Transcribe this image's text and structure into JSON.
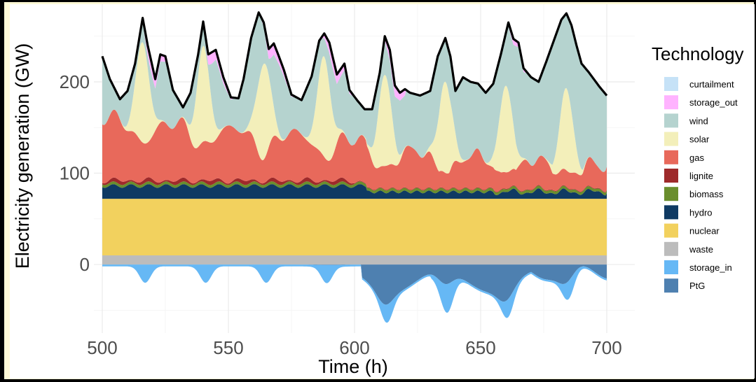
{
  "chart_data": {
    "type": "area",
    "xlabel": "Time (h)",
    "ylabel": "Electricity generation (GW)",
    "xlim": [
      500,
      700
    ],
    "ylim": [
      -75,
      285
    ],
    "xticks": [
      500,
      550,
      600,
      650,
      700
    ],
    "yticks": [
      0,
      100,
      200
    ],
    "grid": true,
    "legend_placement": "right",
    "legend_title": "Technology",
    "day_peaks": [
      516,
      540,
      564,
      588,
      612,
      636,
      660,
      684
    ],
    "layers": [
      {
        "name": "curtailment",
        "color": "#c6e2f7",
        "value_gw": 0
      },
      {
        "name": "storage_out",
        "color": "#ffb3ff",
        "value_gw": "5-15 at daily peaks, hours 500-620, 740-745"
      },
      {
        "name": "wind",
        "color": "#b5d3cf",
        "value_gw": "50-130"
      },
      {
        "name": "solar",
        "color": "#f3efba",
        "value_gw": "0-110, daily peak near 14:00"
      },
      {
        "name": "gas",
        "color": "#e8695b",
        "value_gw": "70 (hour 500) to 25 (hour 700)"
      },
      {
        "name": "lignite",
        "color": "#9e2a2b",
        "value_gw": "2-5, hours 500-600"
      },
      {
        "name": "biomass",
        "color": "#6a8e2d",
        "value_gw": 3
      },
      {
        "name": "hydro",
        "color": "#0f3a63",
        "value_gw": "7-17"
      },
      {
        "name": "nuclear",
        "color": "#f2d15e",
        "value_gw": 62
      },
      {
        "name": "waste",
        "color": "#bcbcbc",
        "value_gw": 10
      },
      {
        "name": "storage_in",
        "color": "#66b8f5",
        "value_gw": "-5 to -25, negative"
      },
      {
        "name": "PtG",
        "color": "#4e80b0",
        "value_gw": "0 to -45, negative, hours 605-700"
      }
    ],
    "total_line_color": "#000000",
    "total_generation_gw": {
      "x": [
        500,
        503,
        507,
        510,
        513,
        516,
        518,
        521,
        523,
        525,
        528,
        532,
        535,
        538,
        540,
        542,
        545,
        548,
        551,
        554,
        556,
        559,
        562,
        564,
        566,
        568,
        570,
        572,
        575,
        579,
        583,
        586,
        588,
        590,
        593,
        596,
        598,
        601,
        604,
        607,
        610,
        612,
        614,
        616,
        618,
        620,
        622,
        626,
        630,
        633,
        636,
        638,
        640,
        643,
        646,
        649,
        652,
        655,
        658,
        661,
        663,
        665,
        667,
        670,
        673,
        676,
        679,
        682,
        684,
        686,
        688,
        690,
        693,
        697,
        700
      ],
      "y": [
        228,
        203,
        181,
        190,
        220,
        270,
        240,
        203,
        230,
        228,
        191,
        172,
        188,
        230,
        266,
        230,
        235,
        205,
        183,
        182,
        203,
        248,
        276,
        265,
        236,
        242,
        228,
        213,
        186,
        180,
        206,
        245,
        253,
        243,
        208,
        220,
        191,
        180,
        170,
        170,
        210,
        250,
        235,
        196,
        188,
        192,
        188,
        185,
        190,
        228,
        248,
        228,
        190,
        205,
        200,
        198,
        188,
        198,
        230,
        265,
        247,
        243,
        215,
        205,
        200,
        222,
        245,
        268,
        275,
        262,
        240,
        220,
        210,
        195,
        185
      ]
    }
  }
}
